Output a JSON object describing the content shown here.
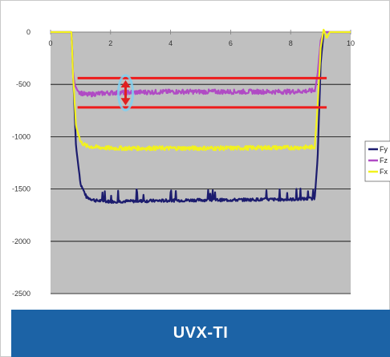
{
  "caption": "UVX-TI",
  "colors": {
    "plot_bg": "#c0c0c0",
    "gridline": "#000000",
    "fy": "#1c1c6e",
    "fz": "#b04bc4",
    "fx": "#f2f21e",
    "reference_lines": "#ee1b1b",
    "arrow": "#e02020",
    "arrow_highlight": "#7fd0f0",
    "caption_band": "#1c63a6"
  },
  "chart_data": {
    "type": "line",
    "title": "",
    "xlabel": "",
    "ylabel": "",
    "xlim": [
      0,
      10
    ],
    "ylim": [
      -2500,
      0
    ],
    "x_ticks": [
      0,
      2,
      4,
      6,
      8,
      10
    ],
    "y_ticks": [
      0,
      -500,
      -1000,
      -1500,
      -2000,
      -2500
    ],
    "grid": true,
    "legend_placement": "right",
    "series": [
      {
        "name": "Fy",
        "color": "#1c1c6e",
        "x": [
          0,
          0.7,
          0.75,
          0.85,
          1.0,
          1.2,
          1.5,
          2,
          3,
          4,
          5,
          6,
          7,
          8,
          8.8,
          8.9,
          9.0,
          9.1,
          9.3,
          9.5,
          10
        ],
        "y": [
          0,
          0,
          -400,
          -1100,
          -1450,
          -1580,
          -1610,
          -1620,
          -1615,
          -1610,
          -1605,
          -1605,
          -1600,
          -1600,
          -1590,
          -1200,
          -300,
          0,
          0,
          0,
          0
        ]
      },
      {
        "name": "Fz",
        "color": "#b04bc4",
        "x": [
          0,
          0.7,
          0.75,
          0.8,
          0.9,
          1.0,
          1.2,
          1.5,
          2,
          3,
          4,
          5,
          6,
          7,
          8,
          8.8,
          8.9,
          9.0,
          9.1,
          9.3,
          9.5,
          10
        ],
        "y": [
          0,
          0,
          -380,
          -500,
          -560,
          -580,
          -600,
          -590,
          -580,
          -575,
          -570,
          -570,
          -570,
          -570,
          -570,
          -560,
          -400,
          -80,
          0,
          0,
          0,
          0
        ]
      },
      {
        "name": "Fx",
        "color": "#f2f21e",
        "x": [
          0,
          0.7,
          0.75,
          0.85,
          1.0,
          1.2,
          1.5,
          2,
          3,
          4,
          5,
          6,
          7,
          8,
          8.8,
          8.9,
          9.0,
          9.1,
          9.2,
          9.3,
          9.5,
          10
        ],
        "y": [
          0,
          0,
          -420,
          -900,
          -1050,
          -1090,
          -1100,
          -1110,
          -1110,
          -1110,
          -1110,
          -1110,
          -1105,
          -1105,
          -1100,
          -700,
          -150,
          30,
          -60,
          0,
          0,
          0
        ]
      }
    ],
    "reference_lines": [
      -440,
      -720
    ],
    "arrow": {
      "x": 2.5,
      "from": -460,
      "to": -700
    }
  }
}
